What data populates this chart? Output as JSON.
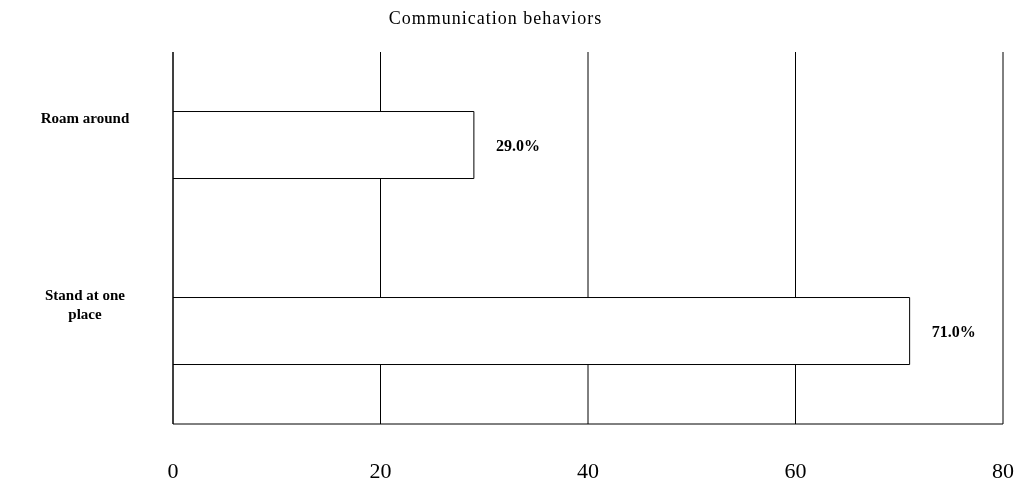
{
  "chart_data": {
    "type": "bar",
    "orientation": "horizontal",
    "title": "Communication behaviors",
    "categories": [
      "Roam around",
      "Stand at one place"
    ],
    "values": [
      29.0,
      71.0
    ],
    "value_labels": [
      "29.0%",
      "71.0%"
    ],
    "color": "#ffffff",
    "xlim": [
      0,
      80
    ],
    "xticks": [
      0,
      20,
      40,
      60,
      80
    ],
    "grid": "x"
  }
}
